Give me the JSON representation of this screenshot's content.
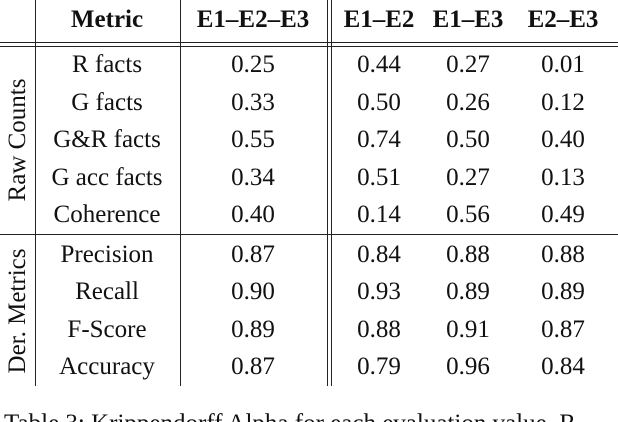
{
  "table": {
    "header": [
      "Metric",
      "E1–E2–E3",
      "E1–E2",
      "E1–E3",
      "E2–E3"
    ],
    "groups": [
      {
        "label": "Raw Counts",
        "rows": [
          [
            "R facts",
            "0.25",
            "0.44",
            "0.27",
            "0.01"
          ],
          [
            "G facts",
            "0.33",
            "0.50",
            "0.26",
            "0.12"
          ],
          [
            "G&R facts",
            "0.55",
            "0.74",
            "0.50",
            "0.40"
          ],
          [
            "G acc facts",
            "0.34",
            "0.51",
            "0.27",
            "0.13"
          ],
          [
            "Coherence",
            "0.40",
            "0.14",
            "0.56",
            "0.49"
          ]
        ]
      },
      {
        "label": "Der. Metrics",
        "rows": [
          [
            "Precision",
            "0.87",
            "0.84",
            "0.88",
            "0.88"
          ],
          [
            "Recall",
            "0.90",
            "0.93",
            "0.89",
            "0.89"
          ],
          [
            "F-Score",
            "0.89",
            "0.88",
            "0.91",
            "0.87"
          ],
          [
            "Accuracy",
            "0.87",
            "0.79",
            "0.96",
            "0.84"
          ]
        ]
      }
    ]
  },
  "caption": "Table 3: Krippendorff Alpha for each evaluation value. R"
}
